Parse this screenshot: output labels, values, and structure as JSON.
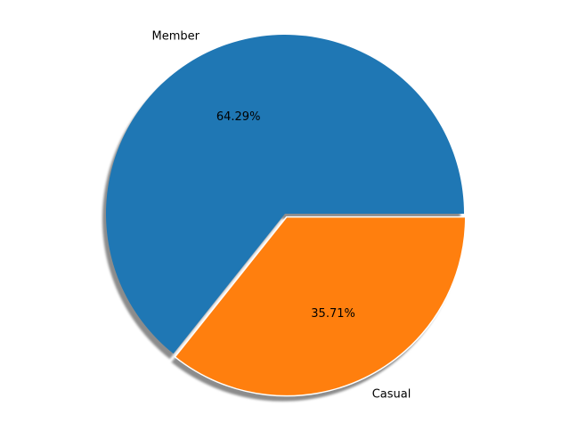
{
  "chart_data": {
    "type": "pie",
    "title": "",
    "slices": [
      {
        "label": "Member",
        "value": 64.29,
        "value_label": "64.29%",
        "color": "#1f77b4",
        "exploded": false
      },
      {
        "label": "Casual",
        "value": 35.71,
        "value_label": "35.71%",
        "color": "#ff7f0e",
        "exploded": true
      }
    ],
    "start_angle_deg": 0,
    "direction": "counterclockwise",
    "shadow": true,
    "autopct": "%.2f%%"
  }
}
